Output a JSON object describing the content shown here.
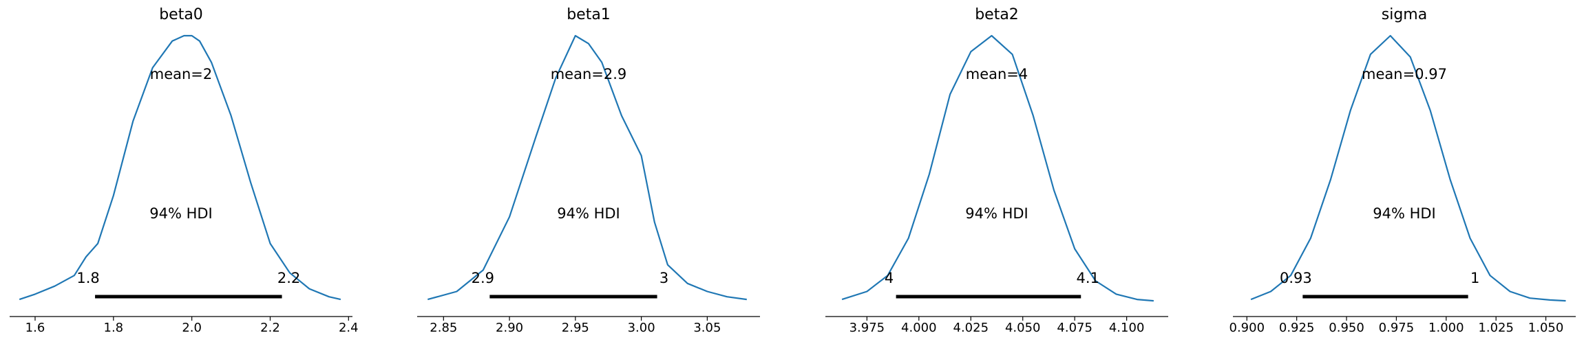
{
  "chart_data": [
    {
      "type": "area",
      "title": "beta0",
      "mean_label": "mean=2",
      "hdi_label": "94% HDI",
      "hdi": [
        1.753,
        2.23
      ],
      "hdi_tick_labels": [
        "1.8",
        "2.2"
      ],
      "xlim": [
        1.535,
        2.41
      ],
      "xticks": [
        1.6,
        1.8,
        2.0,
        2.2,
        2.4
      ],
      "xtick_labels": [
        "1.6",
        "1.8",
        "2.0",
        "2.2",
        "2.4"
      ],
      "density": {
        "x": [
          1.56,
          1.6,
          1.65,
          1.7,
          1.73,
          1.76,
          1.8,
          1.85,
          1.9,
          1.95,
          1.98,
          2.0,
          2.02,
          2.05,
          2.1,
          2.15,
          2.2,
          2.25,
          2.3,
          2.35,
          2.38
        ],
        "y": [
          0.01,
          0.03,
          0.06,
          0.1,
          0.17,
          0.22,
          0.4,
          0.68,
          0.88,
          0.98,
          1.0,
          1.0,
          0.98,
          0.9,
          0.7,
          0.45,
          0.22,
          0.11,
          0.05,
          0.02,
          0.01
        ]
      }
    },
    {
      "type": "area",
      "title": "beta1",
      "mean_label": "mean=2.9",
      "hdi_label": "94% HDI",
      "hdi": [
        2.885,
        3.012
      ],
      "hdi_tick_labels": [
        "2.9",
        "3"
      ],
      "xlim": [
        2.83,
        3.09
      ],
      "xticks": [
        2.85,
        2.9,
        2.95,
        3.0,
        3.05
      ],
      "xtick_labels": [
        "2.85",
        "2.90",
        "2.95",
        "3.00",
        "3.05"
      ],
      "density": {
        "x": [
          2.838,
          2.86,
          2.88,
          2.9,
          2.92,
          2.935,
          2.95,
          2.96,
          2.97,
          2.985,
          3.0,
          3.01,
          3.02,
          3.035,
          3.05,
          3.065,
          3.08
        ],
        "y": [
          0.01,
          0.04,
          0.12,
          0.32,
          0.62,
          0.84,
          1.0,
          0.97,
          0.9,
          0.7,
          0.55,
          0.3,
          0.14,
          0.07,
          0.04,
          0.02,
          0.01
        ]
      }
    },
    {
      "type": "area",
      "title": "beta2",
      "mean_label": "mean=4",
      "hdi_label": "94% HDI",
      "hdi": [
        3.989,
        4.078
      ],
      "hdi_tick_labels": [
        "4",
        "4.1"
      ],
      "xlim": [
        3.955,
        4.12
      ],
      "xticks": [
        3.975,
        4.0,
        4.025,
        4.05,
        4.075,
        4.1
      ],
      "xtick_labels": [
        "3.975",
        "4.000",
        "4.025",
        "4.050",
        "4.075",
        "4.100"
      ],
      "density": {
        "x": [
          3.963,
          3.975,
          3.985,
          3.995,
          4.005,
          4.015,
          4.025,
          4.035,
          4.045,
          4.055,
          4.065,
          4.075,
          4.085,
          4.095,
          4.105,
          4.113
        ],
        "y": [
          0.01,
          0.04,
          0.1,
          0.24,
          0.48,
          0.78,
          0.94,
          1.0,
          0.93,
          0.7,
          0.42,
          0.2,
          0.08,
          0.03,
          0.01,
          0.005
        ]
      }
    },
    {
      "type": "area",
      "title": "sigma",
      "mean_label": "mean=0.97",
      "hdi_label": "94% HDI",
      "hdi": [
        0.928,
        1.011
      ],
      "hdi_tick_labels": [
        "0.93",
        "1"
      ],
      "xlim": [
        0.893,
        1.065
      ],
      "xticks": [
        0.9,
        0.925,
        0.95,
        0.975,
        1.0,
        1.025,
        1.05
      ],
      "xtick_labels": [
        "0.900",
        "0.925",
        "0.950",
        "0.975",
        "1.000",
        "1.025",
        "1.050"
      ],
      "density": {
        "x": [
          0.902,
          0.912,
          0.922,
          0.932,
          0.942,
          0.952,
          0.962,
          0.972,
          0.982,
          0.992,
          1.002,
          1.012,
          1.022,
          1.032,
          1.042,
          1.052,
          1.06
        ],
        "y": [
          0.01,
          0.04,
          0.1,
          0.24,
          0.46,
          0.72,
          0.93,
          1.0,
          0.92,
          0.72,
          0.46,
          0.24,
          0.1,
          0.04,
          0.015,
          0.008,
          0.005
        ]
      }
    }
  ]
}
